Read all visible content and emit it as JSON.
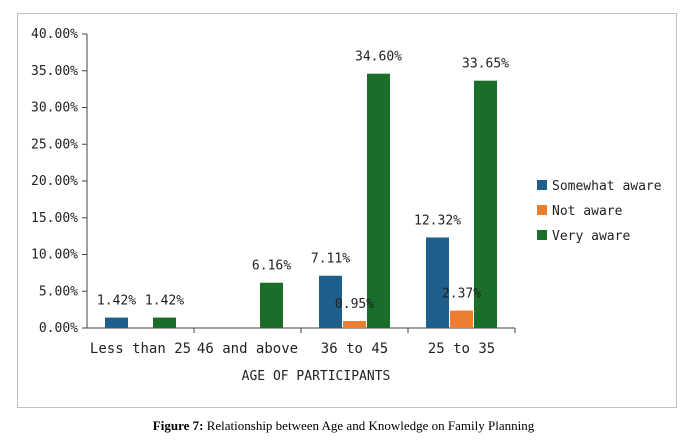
{
  "chart_data": {
    "type": "bar",
    "categories": [
      "Less than 25",
      "46 and above",
      "36 to 45",
      "25 to 35"
    ],
    "series": [
      {
        "name": "Somewhat aware",
        "color": "#1f5f8b",
        "values": [
          1.42,
          null,
          7.11,
          12.32
        ],
        "labels": [
          "1.42%",
          "",
          "7.11%",
          "12.32%"
        ]
      },
      {
        "name": "Not aware",
        "color": "#ed7d31",
        "values": [
          null,
          null,
          0.95,
          2.37
        ],
        "labels": [
          "",
          "",
          "0.95%",
          "2.37%"
        ]
      },
      {
        "name": "Very aware",
        "color": "#1a6e2a",
        "values": [
          1.42,
          6.16,
          34.6,
          33.65
        ],
        "labels": [
          "1.42%",
          "6.16%",
          "34.60%",
          "33.65%"
        ]
      }
    ],
    "yticks": [
      "0.00%",
      "5.00%",
      "10.00%",
      "15.00%",
      "20.00%",
      "25.00%",
      "30.00%",
      "35.00%",
      "40.00%"
    ],
    "ylim": [
      0,
      40
    ],
    "xlabel": "AGE OF PARTICIPANTS",
    "ylabel": "",
    "legend_position": "right",
    "grid": false
  },
  "caption": {
    "label": "Figure 7:",
    "text": " Relationship between Age and Knowledge on Family Planning"
  }
}
